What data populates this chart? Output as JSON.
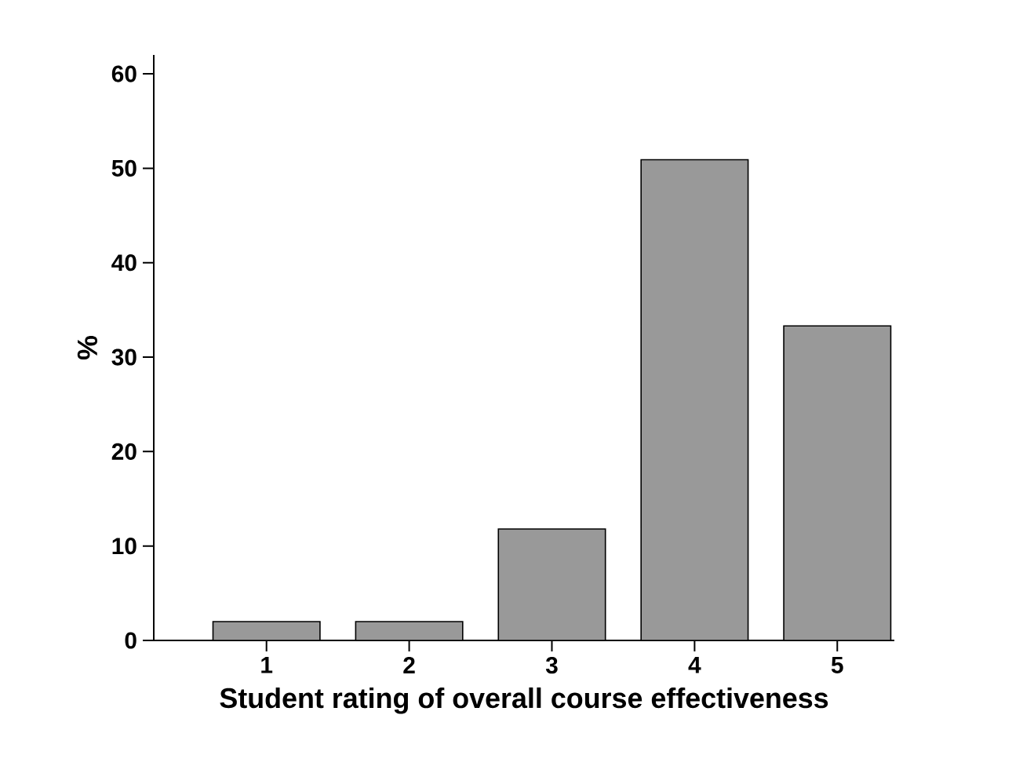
{
  "chart_data": {
    "type": "bar",
    "xlabel": "Student rating of overall course effectiveness",
    "ylabel": "%",
    "categories": [
      "1",
      "2",
      "3",
      "4",
      "5"
    ],
    "values": [
      2,
      2,
      11.8,
      50.9,
      33.3
    ],
    "color": "#999999",
    "ylim": [
      0,
      62
    ],
    "yticks": [
      0,
      10,
      20,
      30,
      40,
      50,
      60
    ],
    "grid": false
  }
}
